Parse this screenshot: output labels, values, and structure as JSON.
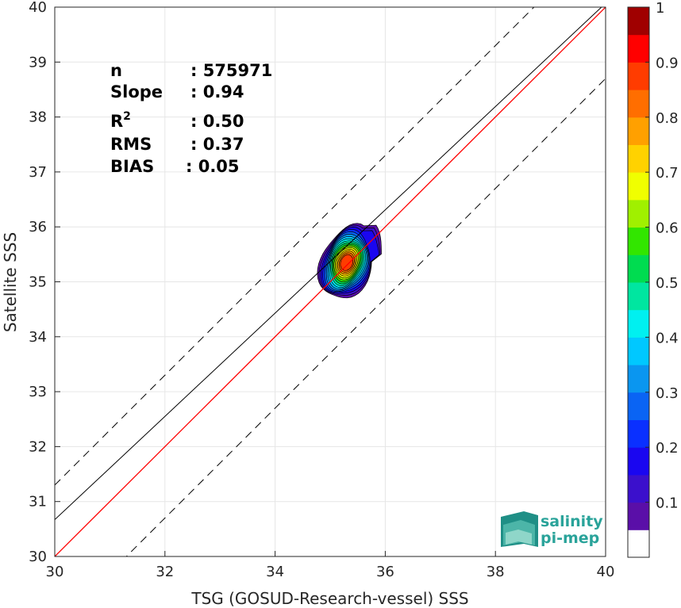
{
  "chart_data": {
    "type": "heatmap",
    "xlabel": "TSG (GOSUD-Research-vessel) SSS",
    "ylabel": "Satellite SSS",
    "xlim": [
      30,
      40
    ],
    "ylim": [
      30,
      40
    ],
    "x_ticks": [
      "30",
      "32",
      "34",
      "36",
      "38",
      "40"
    ],
    "y_ticks": [
      "30",
      "31",
      "32",
      "33",
      "34",
      "35",
      "36",
      "37",
      "38",
      "39",
      "40"
    ],
    "grid": true,
    "stats": [
      {
        "label": "n",
        "value": ": 575971"
      },
      {
        "label": "Slope",
        "value": ": 0.94"
      },
      {
        "label": "R",
        "sup": "2",
        "value": ": 0.50"
      },
      {
        "label": "RMS",
        "value": ": 0.37"
      },
      {
        "label": "BIAS",
        "value": ": 0.05"
      }
    ],
    "reference_lines": [
      {
        "kind": "one-to-one",
        "color": "#ff0000",
        "style": "solid",
        "intercept": 0,
        "slope": 1
      },
      {
        "kind": "regression",
        "color": "#000000",
        "style": "solid",
        "slope": 0.94,
        "intercept": 2.47
      },
      {
        "kind": "upper-bound",
        "color": "#000000",
        "style": "dashed",
        "slope": 1,
        "intercept": 1.3
      },
      {
        "kind": "lower-bound",
        "color": "#000000",
        "style": "dashed",
        "slope": 1,
        "intercept": -1.3
      }
    ],
    "density_center": {
      "x": 35.3,
      "y": 35.35
    },
    "colorbar": {
      "ticks": [
        "0.1",
        "0.2",
        "0.3",
        "0.4",
        "0.5",
        "0.6",
        "0.7",
        "0.8",
        "0.9",
        "1"
      ],
      "min": 0,
      "max": 1,
      "levels": [
        {
          "v": 0.0,
          "color": "#ffffff"
        },
        {
          "v": 0.05,
          "color": "#5a0fa8"
        },
        {
          "v": 0.1,
          "color": "#3b10cc"
        },
        {
          "v": 0.15,
          "color": "#1a06f0"
        },
        {
          "v": 0.2,
          "color": "#0a30ff"
        },
        {
          "v": 0.25,
          "color": "#0a64f4"
        },
        {
          "v": 0.3,
          "color": "#0a96f0"
        },
        {
          "v": 0.35,
          "color": "#00c8ff"
        },
        {
          "v": 0.4,
          "color": "#00f0f0"
        },
        {
          "v": 0.45,
          "color": "#00e6a0"
        },
        {
          "v": 0.5,
          "color": "#00dc50"
        },
        {
          "v": 0.55,
          "color": "#32e600"
        },
        {
          "v": 0.6,
          "color": "#a0f000"
        },
        {
          "v": 0.65,
          "color": "#f0ff00"
        },
        {
          "v": 0.7,
          "color": "#ffd200"
        },
        {
          "v": 0.75,
          "color": "#ffa000"
        },
        {
          "v": 0.8,
          "color": "#ff6e00"
        },
        {
          "v": 0.85,
          "color": "#ff3c00"
        },
        {
          "v": 0.9,
          "color": "#ff0000"
        },
        {
          "v": 0.95,
          "color": "#a00000"
        }
      ]
    }
  },
  "logo": {
    "line1": "salinity",
    "line2": "pi-mep"
  }
}
